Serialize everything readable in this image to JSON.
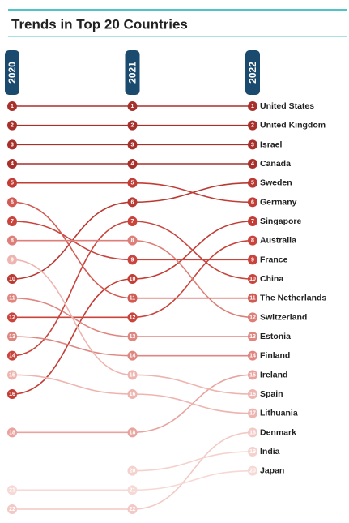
{
  "chart_data": {
    "type": "bump",
    "title": "Trends in Top 20 Countries",
    "x": [
      "2020",
      "2021",
      "2022"
    ],
    "ylim": [
      1,
      22
    ],
    "inverted": true,
    "series": [
      {
        "name": "United States",
        "color": "#a8302b",
        "values": [
          1,
          1,
          1
        ]
      },
      {
        "name": "United Kingdom",
        "color": "#a8302b",
        "values": [
          2,
          2,
          2
        ]
      },
      {
        "name": "Israel",
        "color": "#a8302b",
        "values": [
          3,
          3,
          3
        ]
      },
      {
        "name": "Canada",
        "color": "#a8302b",
        "values": [
          4,
          4,
          4
        ]
      },
      {
        "name": "Sweden",
        "color": "#b83a33",
        "values": [
          10,
          6,
          5
        ]
      },
      {
        "name": "Germany",
        "color": "#c23d35",
        "values": [
          5,
          5,
          6
        ]
      },
      {
        "name": "Singapore",
        "color": "#c23d35",
        "values": [
          16,
          10,
          7
        ]
      },
      {
        "name": "Australia",
        "color": "#c8443c",
        "values": [
          12,
          12,
          8
        ]
      },
      {
        "name": "France",
        "color": "#c8443c",
        "values": [
          7,
          9,
          9
        ]
      },
      {
        "name": "China",
        "color": "#c8443c",
        "values": [
          14,
          7,
          10
        ]
      },
      {
        "name": "The Netherlands",
        "color": "#d15a52",
        "values": [
          6,
          11,
          11
        ]
      },
      {
        "name": "Switzerland",
        "color": "#dd7e78",
        "values": [
          8,
          8,
          12
        ]
      },
      {
        "name": "Estonia",
        "color": "#e08680",
        "values": [
          11,
          13,
          13
        ]
      },
      {
        "name": "Finland",
        "color": "#e08680",
        "values": [
          13,
          14,
          14
        ]
      },
      {
        "name": "Ireland",
        "color": "#e9a29d",
        "values": [
          18,
          18,
          15
        ]
      },
      {
        "name": "Spain",
        "color": "#eeb5b0",
        "values": [
          9,
          15,
          16
        ]
      },
      {
        "name": "Lithuania",
        "color": "#eeb5b0",
        "values": [
          15,
          16,
          17
        ]
      },
      {
        "name": "Denmark",
        "color": "#f2c9c5",
        "values": [
          22,
          22,
          18
        ]
      },
      {
        "name": "India",
        "color": "#f4d1cd",
        "values": [
          null,
          20,
          19
        ]
      },
      {
        "name": "Japan",
        "color": "#f6d8d5",
        "values": [
          21,
          21,
          20
        ]
      }
    ]
  }
}
